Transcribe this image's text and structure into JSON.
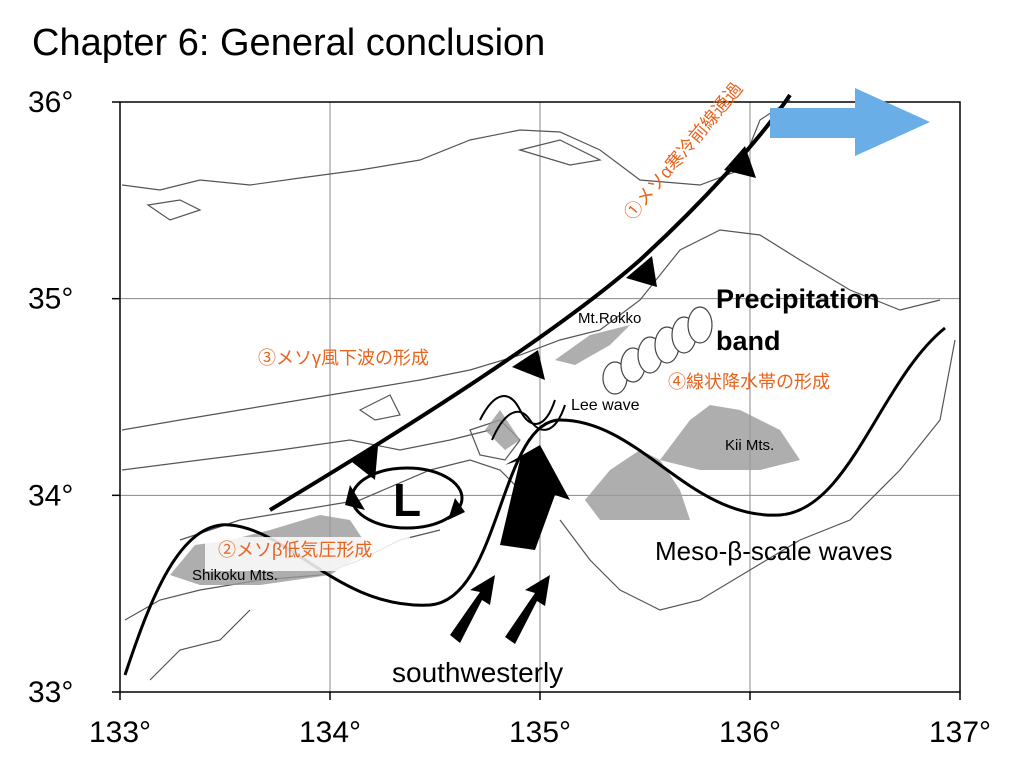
{
  "title": "Chapter 6: General conclusion",
  "map": {
    "xlim": [
      133,
      137
    ],
    "ylim": [
      33,
      36
    ],
    "xticks": [
      {
        "value": 133,
        "label": "133°"
      },
      {
        "value": 134,
        "label": "134°"
      },
      {
        "value": 135,
        "label": "135°"
      },
      {
        "value": 136,
        "label": "136°"
      },
      {
        "value": 137,
        "label": "137°"
      }
    ],
    "yticks": [
      {
        "value": 33,
        "label": "33°"
      },
      {
        "value": 34,
        "label": "34°"
      },
      {
        "value": 35,
        "label": "35°"
      },
      {
        "value": 36,
        "label": "36°"
      }
    ],
    "grid": true,
    "annotations": [
      "①メソα寒冷前線通過",
      "Precipitation",
      "band",
      "Mt.Rokko",
      "③メソγ風下波の形成",
      "④線状降水帯の形成",
      "Lee wave",
      "Kii Mts.",
      "L",
      "②メソβ低気圧形成",
      "Shikoku Mts.",
      "Meso-β-scale waves",
      "southwesterly"
    ]
  }
}
